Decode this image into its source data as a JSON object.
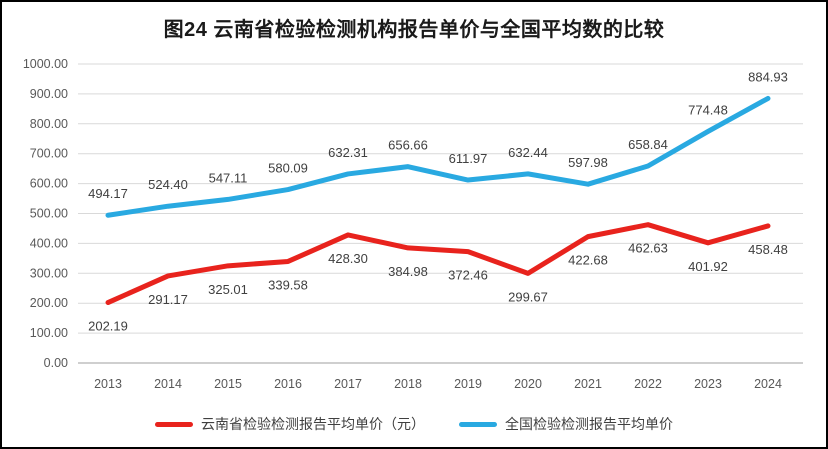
{
  "header": {
    "title": "图24 云南省检验检测机构报告单价与全国平均数的比较"
  },
  "chart_data": {
    "type": "line",
    "title": "图24 云南省检验检测机构报告单价与全国平均数的比较",
    "categories": [
      "2013",
      "2014",
      "2015",
      "2016",
      "2017",
      "2018",
      "2019",
      "2020",
      "2021",
      "2022",
      "2023",
      "2024"
    ],
    "series": [
      {
        "name": "云南省检验检测报告平均单价（元）",
        "color": "#e8231d",
        "values": [
          202.19,
          291.17,
          325.01,
          339.58,
          428.3,
          384.98,
          372.46,
          299.67,
          422.68,
          462.63,
          401.92,
          458.48
        ],
        "labels": [
          "202.19",
          "291.17",
          "325.01",
          "339.58",
          "428.30",
          "384.98",
          "372.46",
          "299.67",
          "422.68",
          "462.63",
          "401.92",
          "458.48"
        ],
        "label_position": "below"
      },
      {
        "name": "全国检验检测报告平均单价",
        "color": "#29a9e1",
        "values": [
          494.17,
          524.4,
          547.11,
          580.09,
          632.31,
          656.66,
          611.97,
          632.44,
          597.98,
          658.84,
          774.48,
          884.93
        ],
        "labels": [
          "494.17",
          "524.40",
          "547.11",
          "580.09",
          "632.31",
          "656.66",
          "611.97",
          "632.44",
          "597.98",
          "658.84",
          "774.48",
          "884.93"
        ],
        "label_position": "above"
      }
    ],
    "ylim": [
      0,
      1000
    ],
    "y_ticks": [
      "0.00",
      "100.00",
      "200.00",
      "300.00",
      "400.00",
      "500.00",
      "600.00",
      "700.00",
      "800.00",
      "900.00",
      "1000.00"
    ],
    "xlabel": "",
    "ylabel": "",
    "grid": true,
    "legend_position": "bottom",
    "colors": {
      "gridline": "#d9d9d9",
      "axis_line": "#bfbfbf",
      "axis_text": "#595959",
      "data_label": "#404040",
      "title_text": "#1a1a1a",
      "frame_border": "#000000",
      "background": "#ffffff"
    }
  }
}
